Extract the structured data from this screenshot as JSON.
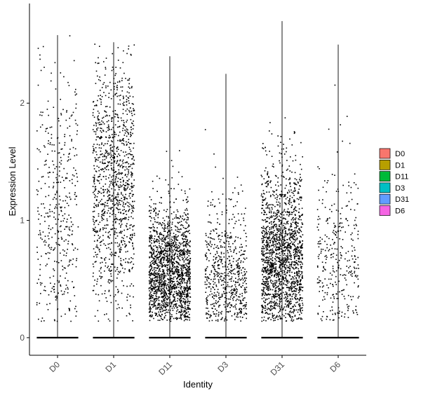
{
  "chart_data": {
    "type": "scatter",
    "subtype": "violin-jitter",
    "title": "",
    "xlabel": "Identity",
    "ylabel": "Expression Level",
    "ylim": [
      -0.15,
      2.85
    ],
    "yticks": [
      0,
      1,
      2
    ],
    "grid": false,
    "legend_position": "right",
    "point_color": "#000000",
    "categories": [
      "D0",
      "D1",
      "D11",
      "D3",
      "D31",
      "D6"
    ],
    "series": [
      {
        "name": "D0",
        "color": "#F8766D",
        "max": 2.58,
        "zero_fraction": 0.55,
        "expressed_mean": 0.95,
        "expressed_sd": 0.65,
        "n_expressed": 420
      },
      {
        "name": "D1",
        "color": "#B79F00",
        "max": 2.52,
        "zero_fraction": 0.45,
        "expressed_mean": 1.25,
        "expressed_sd": 0.55,
        "n_expressed": 1150
      },
      {
        "name": "D11",
        "color": "#00BA38",
        "max": 2.4,
        "zero_fraction": 0.45,
        "expressed_mean": 0.52,
        "expressed_sd": 0.3,
        "n_expressed": 1700
      },
      {
        "name": "D3",
        "color": "#00BFC4",
        "max": 2.25,
        "zero_fraction": 0.55,
        "expressed_mean": 0.45,
        "expressed_sd": 0.35,
        "n_expressed": 620
      },
      {
        "name": "D31",
        "color": "#619CFF",
        "max": 2.7,
        "zero_fraction": 0.45,
        "expressed_mean": 0.62,
        "expressed_sd": 0.4,
        "n_expressed": 1750
      },
      {
        "name": "D6",
        "color": "#F564E3",
        "max": 2.5,
        "zero_fraction": 0.6,
        "expressed_mean": 0.55,
        "expressed_sd": 0.45,
        "n_expressed": 330
      }
    ]
  }
}
